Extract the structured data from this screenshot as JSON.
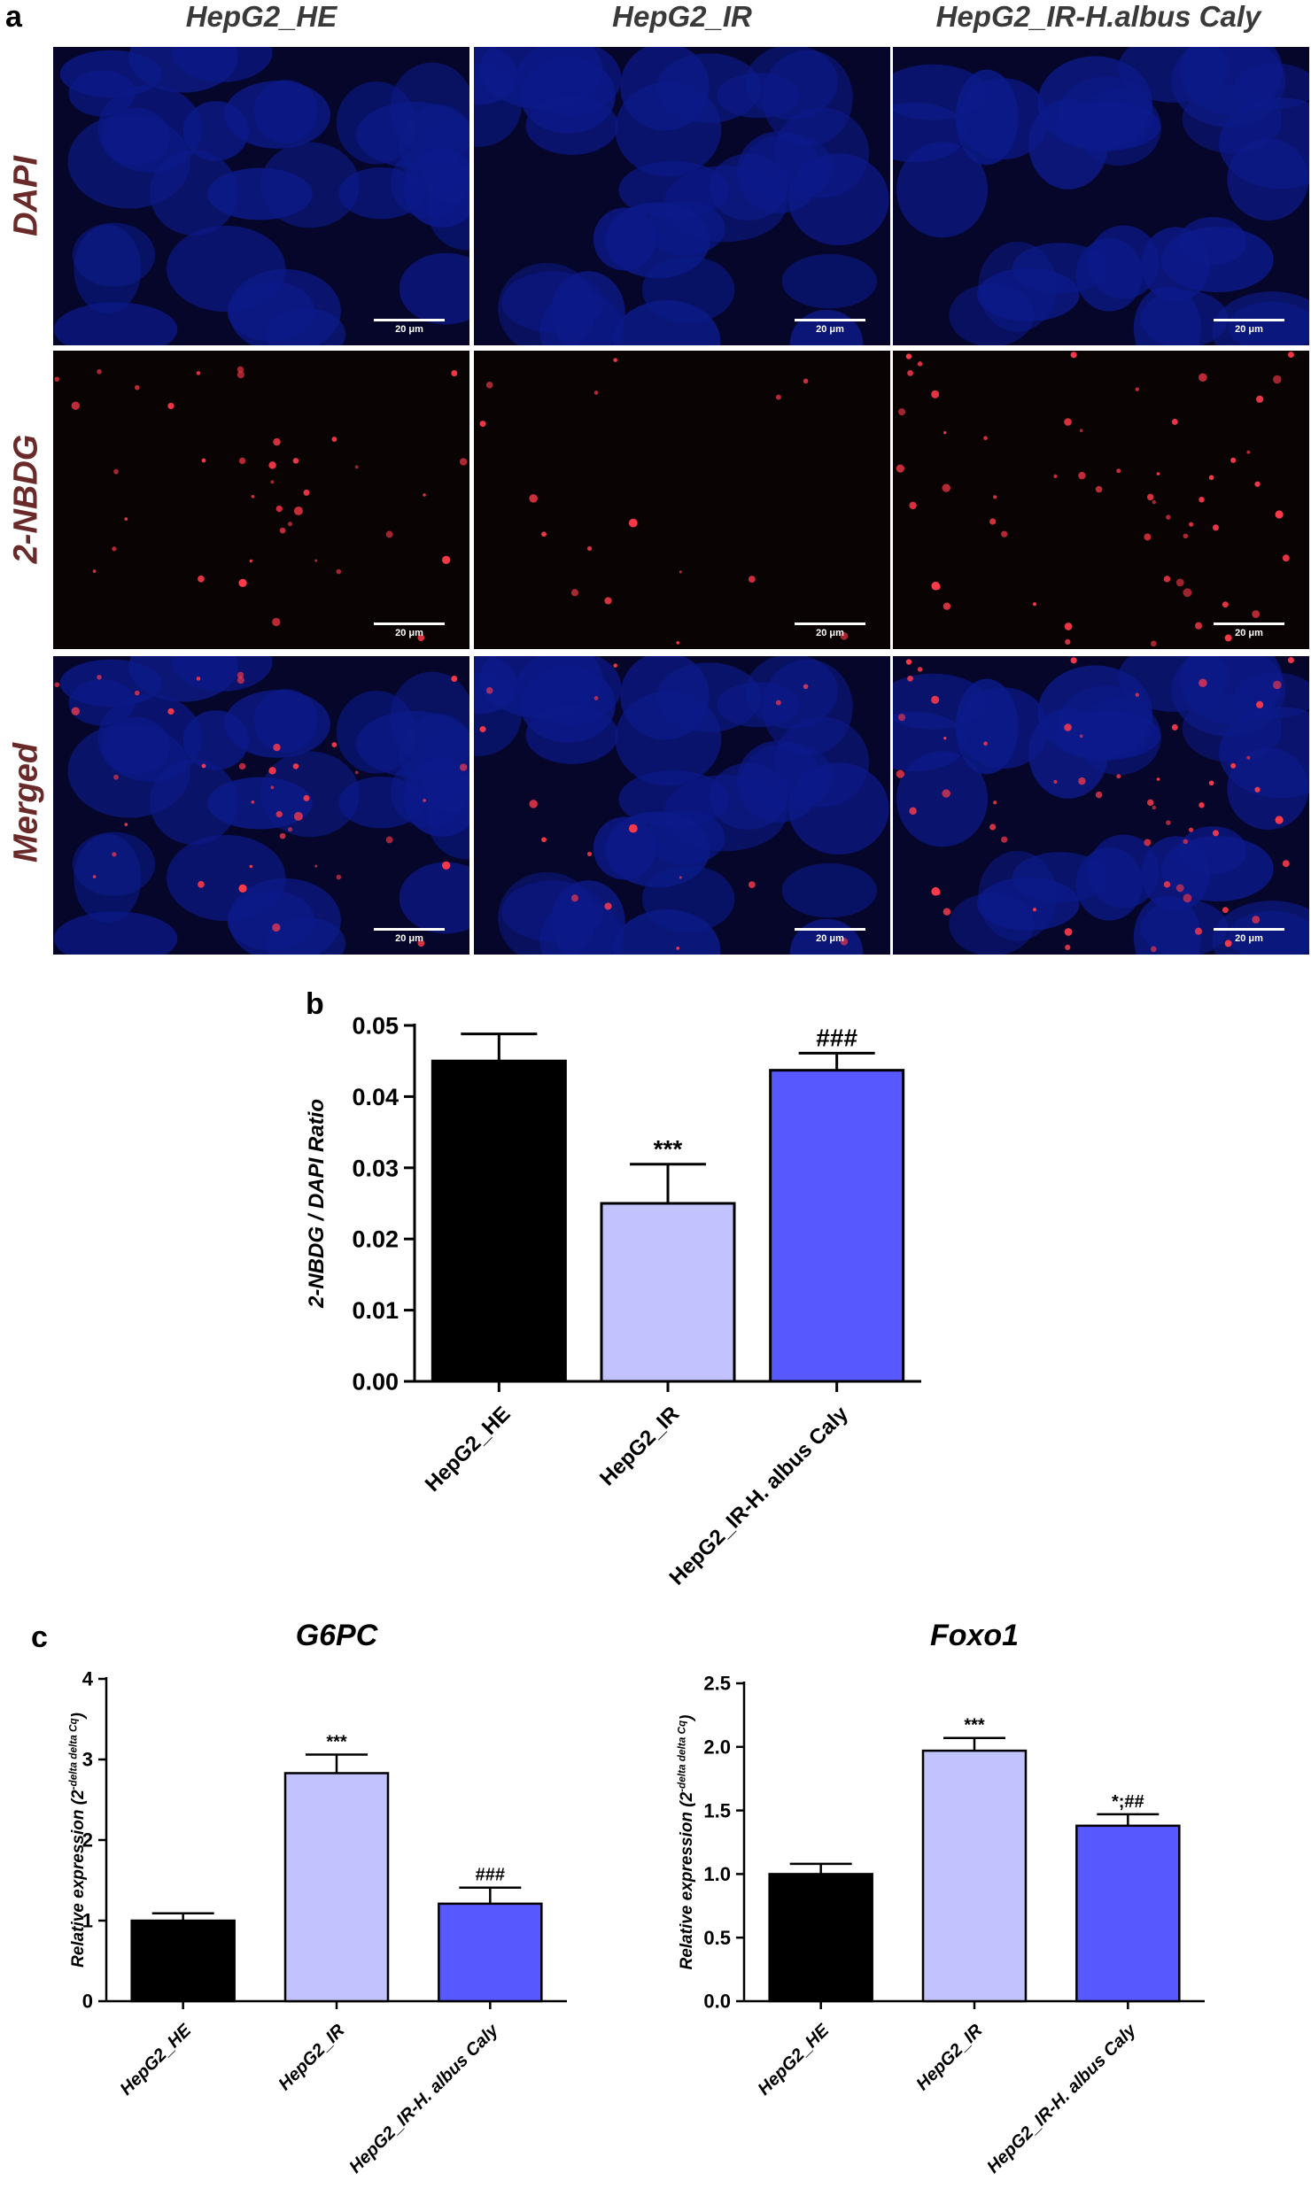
{
  "panel_a": {
    "letter": "a",
    "columns": [
      "HepG2_HE",
      "HepG2_IR",
      "HepG2_IR-H.albus Caly"
    ],
    "rows": [
      "DAPI",
      "2-NBDG",
      "Merged"
    ],
    "scale_label": "20 μm"
  },
  "panel_b_letter": "b",
  "panel_c_letter": "c",
  "colors": {
    "HepG2_HE": "#000000",
    "HepG2_IR": "#c2c2ff",
    "HepG2_IR-H.albus Caly": "#5858ff",
    "dapi": "#0c1a8a",
    "nbdg": "#ff3a4a"
  },
  "chart_data": [
    {
      "type": "bar",
      "panel": "b",
      "title": "",
      "xlabel": "",
      "ylabel": "2-NBDG / DAPI Ratio",
      "categories": [
        "HepG2_HE",
        "HepG2_IR",
        "HepG2_IR-H. albus Caly"
      ],
      "values": [
        0.045,
        0.025,
        0.0437
      ],
      "errors": [
        0.0038,
        0.0055,
        0.0024
      ],
      "annotations": [
        "",
        "***",
        "###"
      ],
      "ylim": [
        0,
        0.05
      ],
      "yticks": [
        "0.00",
        "0.01",
        "0.02",
        "0.03",
        "0.04",
        "0.05"
      ],
      "grid": false
    },
    {
      "type": "bar",
      "panel": "c",
      "title": "G6PC",
      "xlabel": "",
      "ylabel": "Relative expression (2",
      "ylabel_sup": "-delta delta Cq",
      "ylabel_end": ")",
      "categories": [
        "HepG2_HE",
        "HepG2_IR",
        "HepG2_IR-H. albus Caly"
      ],
      "values": [
        1.0,
        2.83,
        1.21
      ],
      "errors": [
        0.09,
        0.23,
        0.2
      ],
      "annotations": [
        "",
        "***",
        "###"
      ],
      "ylim": [
        0,
        4
      ],
      "yticks": [
        "0",
        "1",
        "2",
        "3",
        "4"
      ],
      "grid": false
    },
    {
      "type": "bar",
      "panel": "c",
      "title": "Foxo1",
      "xlabel": "",
      "ylabel": "Relative expression (2",
      "ylabel_sup": "-delta delta Cq",
      "ylabel_end": ")",
      "categories": [
        "HepG2_HE",
        "HepG2_IR",
        "HepG2_IR-H. albus Caly"
      ],
      "values": [
        1.0,
        1.97,
        1.38
      ],
      "errors": [
        0.08,
        0.1,
        0.09
      ],
      "annotations": [
        "",
        "***",
        "*;##"
      ],
      "ylim": [
        0,
        2.5
      ],
      "yticks": [
        "0.0",
        "0.5",
        "1.0",
        "1.5",
        "2.0",
        "2.5"
      ],
      "grid": false
    }
  ]
}
